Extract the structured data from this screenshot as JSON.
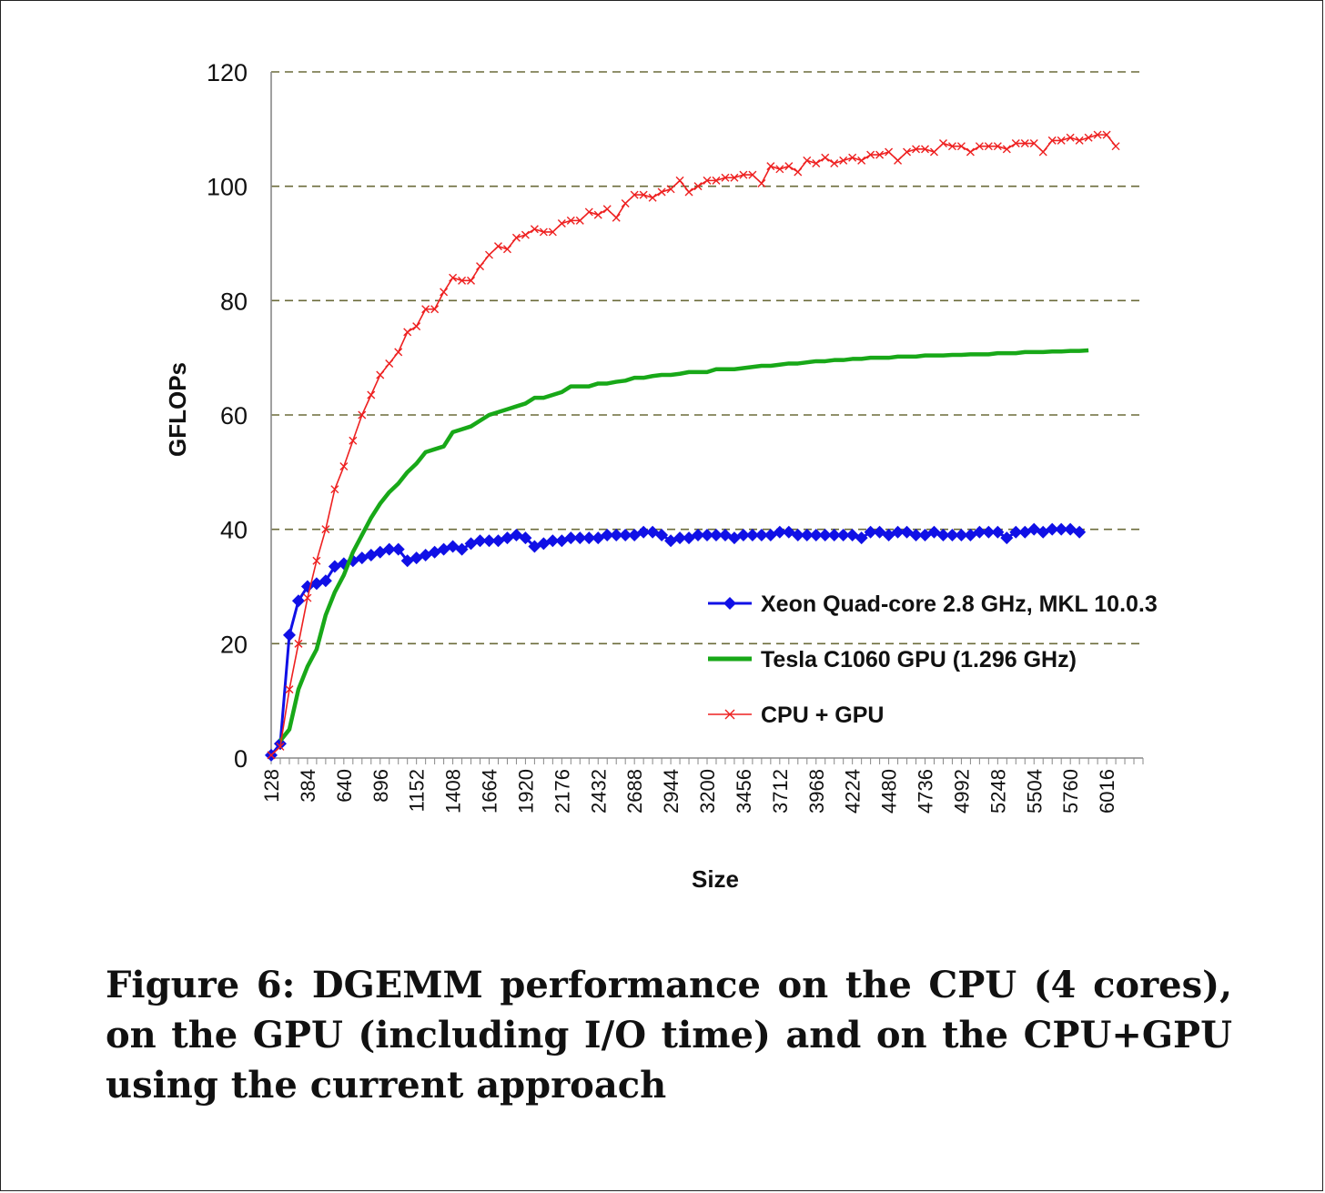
{
  "caption": "Figure 6:  DGEMM performance on the CPU (4 cores), on the GPU (including I/O time) and on the CPU+GPU using the current approach",
  "chart_data": {
    "type": "line",
    "title": "",
    "xlabel": "Size",
    "ylabel": "GFLOPs",
    "ylim": [
      0,
      120
    ],
    "yticks": [
      0,
      20,
      40,
      60,
      80,
      100,
      120
    ],
    "grid": "horizontal dashed",
    "legend_position": "center-right",
    "x_step": 64,
    "xlim": [
      128,
      6272
    ],
    "xtick_labels": [
      "128",
      "384",
      "640",
      "896",
      "1152",
      "1408",
      "1664",
      "1920",
      "2176",
      "2432",
      "2688",
      "2944",
      "3200",
      "3456",
      "3712",
      "3968",
      "4224",
      "4480",
      "4736",
      "4992",
      "5248",
      "5504",
      "5760",
      "6016"
    ],
    "series": [
      {
        "name": "Xeon Quad-core 2.8 GHz, MKL 10.0.3",
        "color": "#1010e6",
        "marker": "diamond",
        "x_start": 128,
        "values": [
          0.5,
          2.5,
          21.5,
          27.5,
          30,
          30.5,
          31,
          33.5,
          34,
          34.5,
          35,
          35.5,
          36,
          36.5,
          36.5,
          34.5,
          35,
          35.5,
          36,
          36.5,
          37,
          36.5,
          37.5,
          38,
          38,
          38,
          38.5,
          39,
          38.5,
          37,
          37.5,
          38,
          38,
          38.5,
          38.5,
          38.5,
          38.5,
          39,
          39,
          39,
          39,
          39.5,
          39.5,
          39,
          38,
          38.5,
          38.5,
          39,
          39,
          39,
          39,
          38.5,
          39,
          39,
          39,
          39,
          39.5,
          39.5,
          39,
          39,
          39,
          39,
          39,
          39,
          39,
          38.5,
          39.5,
          39.5,
          39,
          39.5,
          39.5,
          39,
          39,
          39.5,
          39,
          39,
          39,
          39,
          39.5,
          39.5,
          39.5,
          38.5,
          39.5,
          39.5,
          40,
          39.5,
          40,
          40,
          40,
          39.5
        ]
      },
      {
        "name": "Tesla C1060 GPU (1.296 GHz)",
        "color": "#18a818",
        "marker": "none",
        "x_start": 192,
        "values": [
          3,
          5,
          12,
          16,
          19,
          25,
          29,
          32,
          36,
          39,
          42,
          44.5,
          46.5,
          48,
          50,
          51.5,
          53.5,
          54,
          54.5,
          57,
          57.5,
          58,
          59,
          60,
          60.5,
          61,
          61.5,
          62,
          63,
          63,
          63.5,
          64,
          65,
          65,
          65,
          65.5,
          65.5,
          65.8,
          66,
          66.5,
          66.5,
          66.8,
          67,
          67,
          67.2,
          67.5,
          67.5,
          67.5,
          68,
          68,
          68,
          68.2,
          68.4,
          68.6,
          68.6,
          68.8,
          69,
          69,
          69.2,
          69.4,
          69.4,
          69.6,
          69.6,
          69.8,
          69.8,
          70,
          70,
          70,
          70.2,
          70.2,
          70.2,
          70.4,
          70.4,
          70.4,
          70.5,
          70.5,
          70.6,
          70.6,
          70.6,
          70.8,
          70.8,
          70.8,
          71,
          71,
          71,
          71.1,
          71.1,
          71.2,
          71.2,
          71.3
        ]
      },
      {
        "name": "CPU + GPU",
        "color": "#ee2020",
        "marker": "x",
        "x_start": 128,
        "values": [
          0.5,
          2,
          12,
          20,
          28,
          34.5,
          40,
          47,
          51,
          55.5,
          60,
          63.5,
          67,
          69,
          71,
          74.5,
          75.5,
          78.5,
          78.5,
          81.5,
          84,
          83.5,
          83.5,
          86,
          88,
          89.5,
          89,
          91,
          91.5,
          92.5,
          92,
          92,
          93.5,
          94,
          94,
          95.5,
          95,
          96,
          94.5,
          97,
          98.5,
          98.5,
          98,
          99,
          99.5,
          101,
          99,
          100,
          101,
          101,
          101.5,
          101.5,
          102,
          102,
          100.5,
          103.5,
          103,
          103.5,
          102.5,
          104.5,
          104,
          105,
          104,
          104.5,
          105,
          104.5,
          105.5,
          105.5,
          106,
          104.5,
          106,
          106.5,
          106.5,
          106,
          107.5,
          107,
          107,
          106,
          107,
          107,
          107,
          106.5,
          107.5,
          107.5,
          107.5,
          106,
          108,
          108,
          108.5,
          108,
          108.5,
          109,
          109,
          107
        ]
      }
    ]
  }
}
